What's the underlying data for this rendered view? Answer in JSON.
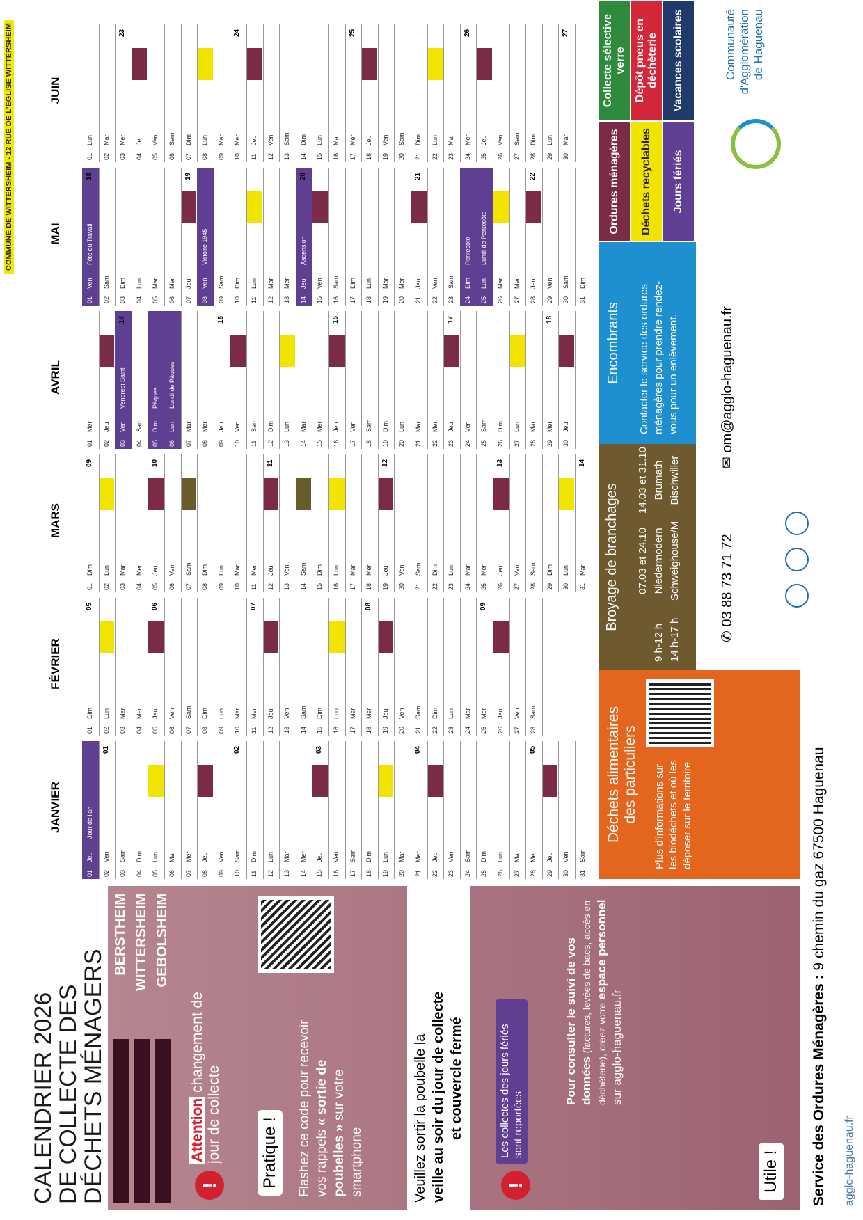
{
  "stamp": "COMMUNE DE WITTERSHEIM - 12 RUE DE L'EGLISE WITTERSHEIM",
  "sidebar": {
    "title": [
      "CALENDRIER 2026",
      "DE COLLECTE DES",
      "DÉCHETS MÉNAGERS"
    ],
    "communes": [
      "BERSTHEIM",
      "WITTERSHEIM",
      "GEBOLSHEIM"
    ],
    "attention": {
      "strong": "Attention",
      "text": "changement de jour de collecte"
    },
    "pratique": {
      "title": "Pratique !",
      "text": "Flashez ce code pour recevoir vos rappels",
      "strong": "« sortie de poubelles »",
      "text2": "sur votre smartphone"
    },
    "veille": {
      "t1": "Veuillez sortir la poubelle la",
      "t2": "veille au soir du jour de collecte",
      "t3": "et couvercle fermé"
    },
    "feries": "Les collectes des jours fériés sont reportées",
    "utile": {
      "title": "Utile !",
      "strong": "Pour consulter le suivi de vos données",
      "small": "(factures, levées de bacs, accès en déchèterie), créez votre",
      "strong2": "espace personnel",
      "text": "sur agglo-haguenau.fr"
    }
  },
  "calendar": {
    "colors": {
      "om": "#7b2b48",
      "rec": "#f0e400",
      "broy": "#6b5a2c",
      "ferie": "#5e3f91"
    },
    "months": [
      {
        "name": "JANVIER",
        "days": [
          {
            "d": "01",
            "w": "Jeu",
            "c": "ferie",
            "label": "Jour de l'an"
          },
          {
            "d": "02",
            "w": "Ven",
            "wk": "01"
          },
          {
            "d": "03",
            "w": "Sam"
          },
          {
            "d": "04",
            "w": "Dim"
          },
          {
            "d": "05",
            "w": "Lun",
            "c": "rec"
          },
          {
            "d": "06",
            "w": "Mar"
          },
          {
            "d": "07",
            "w": "Mer"
          },
          {
            "d": "08",
            "w": "Jeu",
            "c": "om"
          },
          {
            "d": "09",
            "w": "Ven"
          },
          {
            "d": "10",
            "w": "Sam",
            "wk": "02"
          },
          {
            "d": "11",
            "w": "Dim"
          },
          {
            "d": "12",
            "w": "Lun"
          },
          {
            "d": "13",
            "w": "Mar"
          },
          {
            "d": "14",
            "w": "Mer"
          },
          {
            "d": "15",
            "w": "Jeu",
            "c": "om",
            "wk": "03"
          },
          {
            "d": "16",
            "w": "Ven"
          },
          {
            "d": "17",
            "w": "Sam"
          },
          {
            "d": "18",
            "w": "Dim"
          },
          {
            "d": "19",
            "w": "Lun",
            "c": "rec"
          },
          {
            "d": "20",
            "w": "Mar"
          },
          {
            "d": "21",
            "w": "Mer",
            "wk": "04"
          },
          {
            "d": "22",
            "w": "Jeu",
            "c": "om"
          },
          {
            "d": "23",
            "w": "Ven"
          },
          {
            "d": "24",
            "w": "Sam"
          },
          {
            "d": "25",
            "w": "Dim"
          },
          {
            "d": "26",
            "w": "Lun"
          },
          {
            "d": "27",
            "w": "Mar"
          },
          {
            "d": "28",
            "w": "Mer",
            "wk": "05"
          },
          {
            "d": "29",
            "w": "Jeu",
            "c": "om"
          },
          {
            "d": "30",
            "w": "Ven"
          },
          {
            "d": "31",
            "w": "Sam"
          }
        ]
      },
      {
        "name": "FÉVRIER",
        "days": [
          {
            "d": "01",
            "w": "Dim",
            "wk": "05"
          },
          {
            "d": "02",
            "w": "Lun",
            "c": "rec"
          },
          {
            "d": "03",
            "w": "Mar"
          },
          {
            "d": "04",
            "w": "Mer"
          },
          {
            "d": "05",
            "w": "Jeu",
            "c": "om",
            "wk": "06"
          },
          {
            "d": "06",
            "w": "Ven"
          },
          {
            "d": "07",
            "w": "Sam"
          },
          {
            "d": "08",
            "w": "Dim"
          },
          {
            "d": "09",
            "w": "Lun"
          },
          {
            "d": "10",
            "w": "Mar"
          },
          {
            "d": "11",
            "w": "Mer",
            "wk": "07"
          },
          {
            "d": "12",
            "w": "Jeu",
            "c": "om"
          },
          {
            "d": "13",
            "w": "Ven"
          },
          {
            "d": "14",
            "w": "Sam"
          },
          {
            "d": "15",
            "w": "Dim"
          },
          {
            "d": "16",
            "w": "Lun",
            "c": "rec"
          },
          {
            "d": "17",
            "w": "Mar"
          },
          {
            "d": "18",
            "w": "Mer",
            "wk": "08"
          },
          {
            "d": "19",
            "w": "Jeu",
            "c": "om"
          },
          {
            "d": "20",
            "w": "Ven"
          },
          {
            "d": "21",
            "w": "Sam"
          },
          {
            "d": "22",
            "w": "Dim"
          },
          {
            "d": "23",
            "w": "Lun"
          },
          {
            "d": "24",
            "w": "Mar"
          },
          {
            "d": "25",
            "w": "Mer",
            "wk": "09"
          },
          {
            "d": "26",
            "w": "Jeu",
            "c": "om"
          },
          {
            "d": "27",
            "w": "Ven"
          },
          {
            "d": "28",
            "w": "Sam"
          }
        ]
      },
      {
        "name": "MARS",
        "days": [
          {
            "d": "01",
            "w": "Dim",
            "wk": "09"
          },
          {
            "d": "02",
            "w": "Lun",
            "c": "rec"
          },
          {
            "d": "03",
            "w": "Mar"
          },
          {
            "d": "04",
            "w": "Mer"
          },
          {
            "d": "05",
            "w": "Jeu",
            "c": "om",
            "wk": "10"
          },
          {
            "d": "06",
            "w": "Ven"
          },
          {
            "d": "07",
            "w": "Sam",
            "c": "broy"
          },
          {
            "d": "08",
            "w": "Dim"
          },
          {
            "d": "09",
            "w": "Lun"
          },
          {
            "d": "10",
            "w": "Mar"
          },
          {
            "d": "11",
            "w": "Mer"
          },
          {
            "d": "12",
            "w": "Jeu",
            "c": "om",
            "wk": "11"
          },
          {
            "d": "13",
            "w": "Ven"
          },
          {
            "d": "14",
            "w": "Sam",
            "c": "broy"
          },
          {
            "d": "15",
            "w": "Dim"
          },
          {
            "d": "16",
            "w": "Lun",
            "c": "rec"
          },
          {
            "d": "17",
            "w": "Mar"
          },
          {
            "d": "18",
            "w": "Mer"
          },
          {
            "d": "19",
            "w": "Jeu",
            "c": "om",
            "wk": "12"
          },
          {
            "d": "20",
            "w": "Ven"
          },
          {
            "d": "21",
            "w": "Sam"
          },
          {
            "d": "22",
            "w": "Dim"
          },
          {
            "d": "23",
            "w": "Lun"
          },
          {
            "d": "24",
            "w": "Mar"
          },
          {
            "d": "25",
            "w": "Mer"
          },
          {
            "d": "26",
            "w": "Jeu",
            "c": "om",
            "wk": "13"
          },
          {
            "d": "27",
            "w": "Ven"
          },
          {
            "d": "28",
            "w": "Sam"
          },
          {
            "d": "29",
            "w": "Dim"
          },
          {
            "d": "30",
            "w": "Lun",
            "c": "rec"
          },
          {
            "d": "31",
            "w": "Mar",
            "wk": "14"
          }
        ]
      },
      {
        "name": "AVRIL",
        "days": [
          {
            "d": "01",
            "w": "Mer"
          },
          {
            "d": "02",
            "w": "Jeu",
            "c": "om"
          },
          {
            "d": "03",
            "w": "Ven",
            "c": "ferie",
            "label": "Vendredi Saint",
            "wk": "14"
          },
          {
            "d": "04",
            "w": "Sam"
          },
          {
            "d": "05",
            "w": "Dim",
            "c": "ferie",
            "label": "Pâques"
          },
          {
            "d": "06",
            "w": "Lun",
            "c": "ferie",
            "label": "Lundi de Pâques"
          },
          {
            "d": "07",
            "w": "Mar"
          },
          {
            "d": "08",
            "w": "Mer"
          },
          {
            "d": "09",
            "w": "Jeu",
            "wk": "15"
          },
          {
            "d": "10",
            "w": "Ven",
            "c": "om"
          },
          {
            "d": "11",
            "w": "Sam"
          },
          {
            "d": "12",
            "w": "Dim"
          },
          {
            "d": "13",
            "w": "Lun",
            "c": "rec"
          },
          {
            "d": "14",
            "w": "Mar"
          },
          {
            "d": "15",
            "w": "Mer"
          },
          {
            "d": "16",
            "w": "Jeu",
            "c": "om",
            "wk": "16"
          },
          {
            "d": "17",
            "w": "Ven"
          },
          {
            "d": "18",
            "w": "Sam"
          },
          {
            "d": "19",
            "w": "Dim"
          },
          {
            "d": "20",
            "w": "Lun"
          },
          {
            "d": "21",
            "w": "Mar"
          },
          {
            "d": "22",
            "w": "Mer"
          },
          {
            "d": "23",
            "w": "Jeu",
            "c": "om",
            "wk": "17"
          },
          {
            "d": "24",
            "w": "Ven"
          },
          {
            "d": "25",
            "w": "Sam"
          },
          {
            "d": "26",
            "w": "Dim"
          },
          {
            "d": "27",
            "w": "Lun",
            "c": "rec"
          },
          {
            "d": "28",
            "w": "Mar"
          },
          {
            "d": "29",
            "w": "Mer",
            "wk": "18"
          },
          {
            "d": "30",
            "w": "Jeu",
            "c": "om"
          }
        ]
      },
      {
        "name": "MAI",
        "days": [
          {
            "d": "01",
            "w": "Ven",
            "c": "ferie",
            "label": "Fête du Travail",
            "wk": "18"
          },
          {
            "d": "02",
            "w": "Sam"
          },
          {
            "d": "03",
            "w": "Dim"
          },
          {
            "d": "04",
            "w": "Lun"
          },
          {
            "d": "05",
            "w": "Mar"
          },
          {
            "d": "06",
            "w": "Mer"
          },
          {
            "d": "07",
            "w": "Jeu",
            "c": "om",
            "wk": "19"
          },
          {
            "d": "08",
            "w": "Ven",
            "c": "ferie",
            "label": "Victoire 1945"
          },
          {
            "d": "09",
            "w": "Sam"
          },
          {
            "d": "10",
            "w": "Dim"
          },
          {
            "d": "11",
            "w": "Lun",
            "c": "rec"
          },
          {
            "d": "12",
            "w": "Mar"
          },
          {
            "d": "13",
            "w": "Mer"
          },
          {
            "d": "14",
            "w": "Jeu",
            "c": "ferie",
            "label": "Ascension",
            "wk": "20"
          },
          {
            "d": "15",
            "w": "Ven",
            "c": "om"
          },
          {
            "d": "16",
            "w": "Sam"
          },
          {
            "d": "17",
            "w": "Dim"
          },
          {
            "d": "18",
            "w": "Lun"
          },
          {
            "d": "19",
            "w": "Mar"
          },
          {
            "d": "20",
            "w": "Mer"
          },
          {
            "d": "21",
            "w": "Jeu",
            "c": "om",
            "wk": "21"
          },
          {
            "d": "22",
            "w": "Ven"
          },
          {
            "d": "23",
            "w": "Sam"
          },
          {
            "d": "24",
            "w": "Dim",
            "c": "ferie",
            "label": "Pentecôte"
          },
          {
            "d": "25",
            "w": "Lun",
            "c": "ferie",
            "label": "Lundi de Pentecôte"
          },
          {
            "d": "26",
            "w": "Mar",
            "c": "rec"
          },
          {
            "d": "27",
            "w": "Mer"
          },
          {
            "d": "28",
            "w": "Jeu",
            "c": "om",
            "wk": "22"
          },
          {
            "d": "29",
            "w": "Ven"
          },
          {
            "d": "30",
            "w": "Sam"
          },
          {
            "d": "31",
            "w": "Dim"
          }
        ]
      },
      {
        "name": "JUIN",
        "days": [
          {
            "d": "01",
            "w": "Lun"
          },
          {
            "d": "02",
            "w": "Mar"
          },
          {
            "d": "03",
            "w": "Mer",
            "wk": "23"
          },
          {
            "d": "04",
            "w": "Jeu",
            "c": "om"
          },
          {
            "d": "05",
            "w": "Ven"
          },
          {
            "d": "06",
            "w": "Sam"
          },
          {
            "d": "07",
            "w": "Dim"
          },
          {
            "d": "08",
            "w": "Lun",
            "c": "rec"
          },
          {
            "d": "09",
            "w": "Mar"
          },
          {
            "d": "10",
            "w": "Mer",
            "wk": "24"
          },
          {
            "d": "11",
            "w": "Jeu",
            "c": "om"
          },
          {
            "d": "12",
            "w": "Ven"
          },
          {
            "d": "13",
            "w": "Sam"
          },
          {
            "d": "14",
            "w": "Dim"
          },
          {
            "d": "15",
            "w": "Lun"
          },
          {
            "d": "16",
            "w": "Mar"
          },
          {
            "d": "17",
            "w": "Mer",
            "wk": "25"
          },
          {
            "d": "18",
            "w": "Jeu",
            "c": "om"
          },
          {
            "d": "19",
            "w": "Ven"
          },
          {
            "d": "20",
            "w": "Sam"
          },
          {
            "d": "21",
            "w": "Dim"
          },
          {
            "d": "22",
            "w": "Lun",
            "c": "rec"
          },
          {
            "d": "23",
            "w": "Mar"
          },
          {
            "d": "24",
            "w": "Mer",
            "wk": "26"
          },
          {
            "d": "25",
            "w": "Jeu",
            "c": "om"
          },
          {
            "d": "26",
            "w": "Ven"
          },
          {
            "d": "27",
            "w": "Sam"
          },
          {
            "d": "28",
            "w": "Dim"
          },
          {
            "d": "29",
            "w": "Lun"
          },
          {
            "d": "30",
            "w": "Mar",
            "wk": "27"
          }
        ]
      }
    ]
  },
  "bottom": {
    "alim": {
      "title": [
        "Déchets alimentaires",
        "des particuliers"
      ],
      "text": [
        "Plus d'informations sur",
        "les biodéchets et où les",
        "déposer sur le territoire"
      ]
    },
    "broyage": {
      "title": "Broyage de branchages",
      "hours": [
        "9 h-12 h",
        "14 h-17 h"
      ],
      "col1": [
        "07.03 et 24.10",
        "Niedermodern",
        "Schweighouse/M"
      ],
      "col2": [
        "14.03 et 31.10",
        "Brumath",
        "Bischwiller"
      ]
    },
    "encombrants": {
      "title": "Encombrants",
      "text": [
        "Contacter le service des ordures",
        "ménagères pour prendre rendez-",
        "vous pour un enlèvement."
      ]
    }
  },
  "legend": [
    {
      "label": "Ordures ménagères",
      "color": "#7b2b48",
      "text": "#ffffff"
    },
    {
      "label": "Collecte sélective verre",
      "color": "#2e8b3e",
      "text": "#ffffff"
    },
    {
      "label": "Déchets recyclables",
      "color": "#f0e400",
      "text": "#222222"
    },
    {
      "label": "Dépôt pneus en déchèterie",
      "color": "#d4283a",
      "text": "#ffffff"
    },
    {
      "label": "Jours fériés",
      "color": "#5e3f91",
      "text": "#ffffff"
    },
    {
      "label": "Vacances scolaires",
      "color": "#1f3a6b",
      "text": "#ffffff"
    }
  ],
  "footer": {
    "service": "Service des Ordures Ménagères :",
    "address": "9 chemin du gaz 67500 Haguenau",
    "phone": "03 88 73 71 72",
    "email": "om@agglo-haguenau.fr",
    "site": "agglo-haguenau.fr",
    "logo": [
      "Communauté",
      "d'Agglomération",
      "de Haguenau"
    ]
  }
}
